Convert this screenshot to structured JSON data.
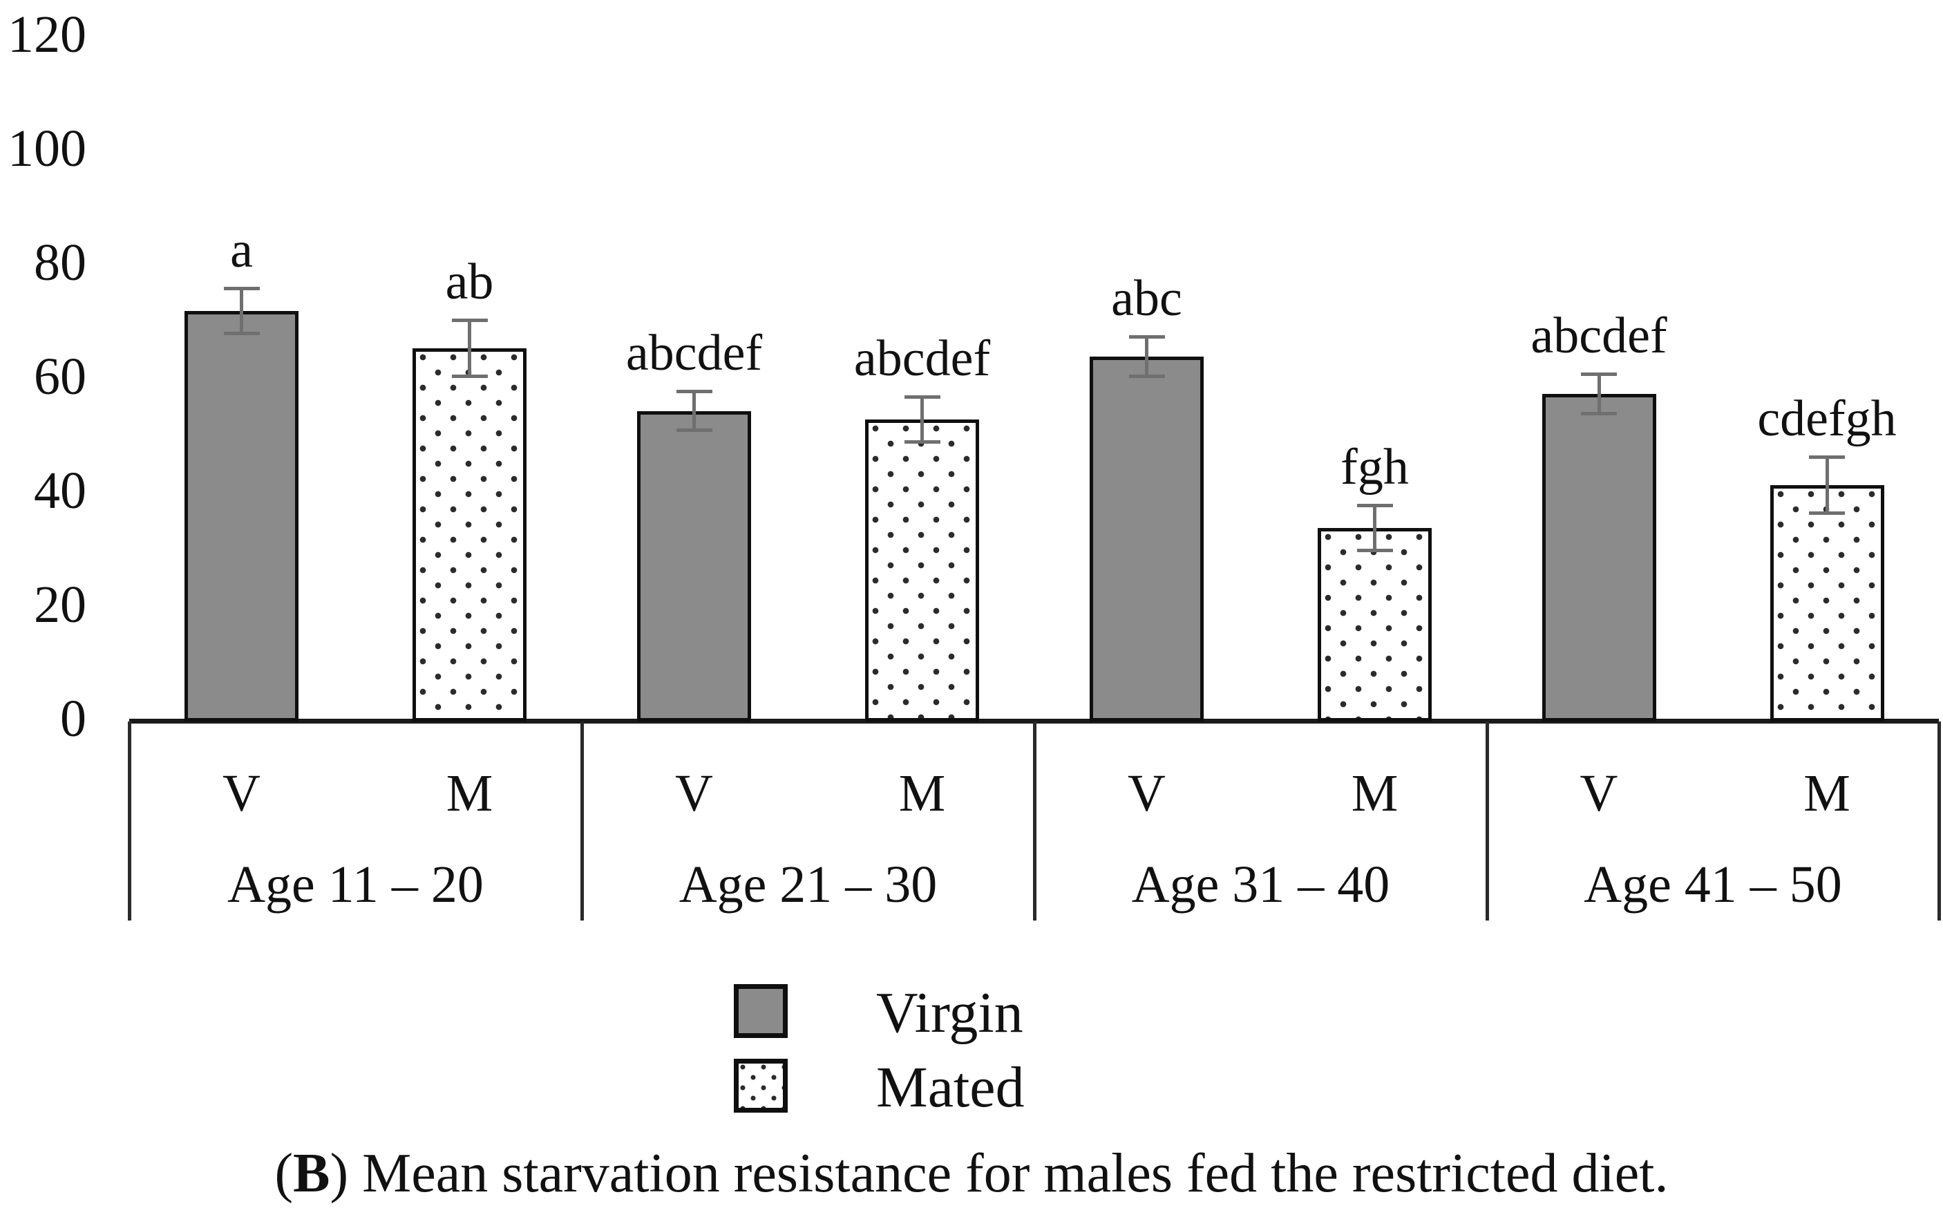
{
  "colors": {
    "virgin_fill": "#8b8b8b",
    "mated_fill": "#ffffff",
    "dot_color": "#2b2b2b",
    "bar_border": "#0f0f0f",
    "error_bar": "#6f6f6f",
    "axis": "#1a1a1a",
    "background": "#ffffff",
    "text": "#111111"
  },
  "legend": {
    "items": [
      {
        "label": "Virgin",
        "swatch": "virgin"
      },
      {
        "label": "Mated",
        "swatch": "mated"
      }
    ]
  },
  "caption": {
    "open": "(",
    "label": "B",
    "rest": ") Mean starvation resistance for males fed the restricted diet."
  },
  "chart_data": {
    "type": "bar",
    "title": "",
    "xlabel": "",
    "ylabel": "",
    "ylim": [
      0,
      120
    ],
    "yticks": [
      0,
      20,
      40,
      60,
      80,
      100,
      120
    ],
    "grid": false,
    "legend_position": "bottom-center",
    "series_legend": {
      "V": "Virgin",
      "M": "Mated"
    },
    "groups": [
      {
        "label": "Age 11 – 20",
        "bars": [
          {
            "series": "V",
            "value": 71.5,
            "error": 4,
            "letters": "a"
          },
          {
            "series": "M",
            "value": 65,
            "error": 5,
            "letters": "ab"
          }
        ]
      },
      {
        "label": "Age 21 – 30",
        "bars": [
          {
            "series": "V",
            "value": 54,
            "error": 3.5,
            "letters": "abcdef"
          },
          {
            "series": "M",
            "value": 52.5,
            "error": 4,
            "letters": "abcdef"
          }
        ]
      },
      {
        "label": "Age 31 – 40",
        "bars": [
          {
            "series": "V",
            "value": 63.5,
            "error": 3.5,
            "letters": "abc"
          },
          {
            "series": "M",
            "value": 33.5,
            "error": 4,
            "letters": "fgh"
          }
        ]
      },
      {
        "label": "Age 41 – 50",
        "bars": [
          {
            "series": "V",
            "value": 57,
            "error": 3.5,
            "letters": "abcdef"
          },
          {
            "series": "M",
            "value": 41,
            "error": 5,
            "letters": "cdefgh"
          }
        ]
      }
    ]
  }
}
